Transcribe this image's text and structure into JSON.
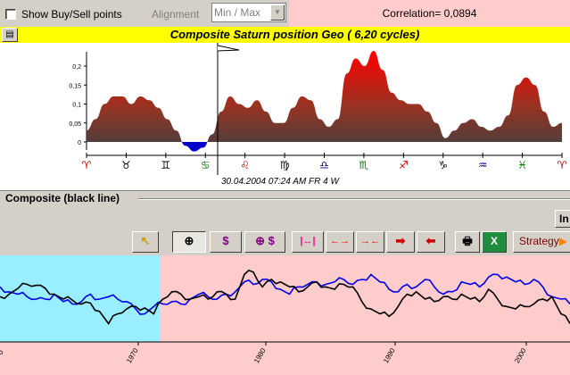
{
  "top_bar": {
    "show_points_label": "Show Buy/Sell points",
    "show_points_checked": false,
    "alignment_label": "Alignment",
    "alignment_value": "Min / Max",
    "correlation_text": "Correlation= 0,0894"
  },
  "title": "Composite Saturn position Geo  ( 6,20 cycles)",
  "upper_chart": {
    "y_ticks": [
      "0,2",
      "0,15",
      "0,1",
      "0,05",
      "0"
    ],
    "zodiac": [
      "♈",
      "♉",
      "♊",
      "♋",
      "♌",
      "♍",
      "♎",
      "♏",
      "♐",
      "♑",
      "♒",
      "♓",
      "♈"
    ],
    "zodiac_colors": [
      "#cc0000",
      "#000000",
      "#000000",
      "#008000",
      "#cc0000",
      "#000000",
      "#000080",
      "#008000",
      "#cc0000",
      "#000000",
      "#000080",
      "#008000",
      "#cc0000"
    ],
    "cursor_label": "30.04.2004  07:24 AM FR  4 W",
    "values": [
      0.03,
      0.06,
      0.1,
      0.12,
      0.12,
      0.1,
      0.12,
      0.11,
      0.09,
      0.06,
      0.03,
      -0.01,
      -0.025,
      -0.015,
      0.02,
      0.08,
      0.12,
      0.1,
      0.09,
      0.11,
      0.08,
      0.05,
      0.05,
      0.09,
      0.12,
      0.11,
      0.06,
      0.04,
      0.06,
      0.18,
      0.22,
      0.2,
      0.24,
      0.19,
      0.13,
      0.11,
      0.1,
      0.1,
      0.08,
      0.05,
      0.01,
      0.03,
      0.05,
      0.06,
      0.04,
      0.03,
      0.04,
      0.07,
      0.15,
      0.17,
      0.15,
      0.08,
      0.04,
      0.05
    ]
  },
  "section": {
    "title": "Composite (black line)",
    "right_button": "In"
  },
  "toolbar": {
    "pointer": "↖",
    "zoom": "⊕",
    "dollar": "$",
    "zoom_dollar": "⊕ $",
    "fit_width": "|↔|",
    "expand": "←→",
    "shrink": "→←",
    "right": "➡",
    "left": "⬅",
    "print": "🖶",
    "excel": "X",
    "strategy_label": "Strategy",
    "strategy_arrow": "▶"
  },
  "lower_chart": {
    "x_labels": [
      "1970",
      "1980",
      "1990",
      "2000"
    ],
    "first_label": "0",
    "highlight_color": "#99eeff",
    "background_color": "#ffcccc",
    "composite": [
      0.25,
      0.3,
      0.42,
      0.5,
      0.48,
      0.42,
      0.3,
      0.2,
      0.18,
      0.1,
      0.12,
      -0.05,
      -0.3,
      -0.1,
      0.0,
      0.05,
      0.02,
      -0.1,
      0.2,
      0.35,
      0.3,
      0.2,
      0.25,
      0.2,
      0.35,
      0.3,
      0.2,
      0.7,
      0.75,
      0.45,
      0.6,
      0.55,
      0.45,
      0.35,
      0.45,
      0.55,
      0.45,
      0.4,
      0.5,
      0.45,
      0.15,
      0.0,
      -0.1,
      -0.15,
      0.05,
      0.3,
      0.35,
      0.2,
      0.15,
      0.25,
      0.2,
      0.3,
      0.2,
      0.15,
      0.4,
      0.2,
      0.05,
      0.0,
      0.05,
      0.1,
      0.2,
      0.25,
      -0.1,
      -0.3
    ],
    "price": [
      0.45,
      0.35,
      0.3,
      0.25,
      0.2,
      0.2,
      0.3,
      0.15,
      0.1,
      0.15,
      0.3,
      0.2,
      0.25,
      0.2,
      0.15,
      0.0,
      -0.1,
      0.05,
      0.1,
      0.15,
      0.1,
      0.2,
      0.3,
      0.25,
      0.2,
      0.3,
      0.35,
      0.55,
      0.5,
      0.6,
      0.55,
      0.4,
      0.3,
      0.45,
      0.5,
      0.55,
      0.5,
      0.55,
      0.6,
      0.5,
      0.6,
      0.7,
      0.55,
      0.4,
      0.35,
      0.5,
      0.45,
      0.6,
      0.45,
      0.3,
      0.35,
      0.55,
      0.5,
      0.45,
      0.65,
      0.7,
      0.65,
      0.55,
      0.5,
      0.6,
      0.45,
      0.25,
      0.2,
      0.1
    ]
  }
}
